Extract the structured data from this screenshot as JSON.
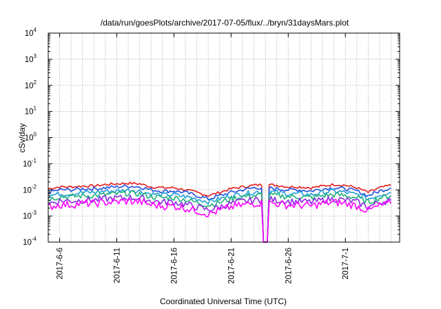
{
  "chart_data": {
    "type": "line",
    "title": "/data/run/goesPlots/archive/2017-07-05/flux/../bryn/31daysMars.plot",
    "xlabel": "Coordinated Universal Time (UTC)",
    "ylabel": "cSv/day",
    "y_scale": "log",
    "ylim": [
      0.0001,
      10000
    ],
    "xlim": [
      "2017-06-05",
      "2017-07-05T18:00"
    ],
    "y_ticks": [
      {
        "value": 0.0001,
        "base": "10",
        "exp": "-4"
      },
      {
        "value": 0.001,
        "base": "10",
        "exp": "-3"
      },
      {
        "value": 0.01,
        "base": "10",
        "exp": "-2"
      },
      {
        "value": 0.1,
        "base": "10",
        "exp": "-1"
      },
      {
        "value": 1,
        "base": "10",
        "exp": "0"
      },
      {
        "value": 10,
        "base": "10",
        "exp": "1"
      },
      {
        "value": 100,
        "base": "10",
        "exp": "2"
      },
      {
        "value": 1000,
        "base": "10",
        "exp": "3"
      },
      {
        "value": 10000,
        "base": "10",
        "exp": "4"
      }
    ],
    "x_ticks": [
      {
        "date": "2017-06-06",
        "label": "2017-6-6"
      },
      {
        "date": "2017-06-11",
        "label": "2017-6-11"
      },
      {
        "date": "2017-06-16",
        "label": "2017-6-16"
      },
      {
        "date": "2017-06-21",
        "label": "2017-6-21"
      },
      {
        "date": "2017-06-26",
        "label": "2017-6-26"
      },
      {
        "date": "2017-07-01",
        "label": "2017-7-1"
      }
    ],
    "grid": true,
    "x": [
      "2017-06-05",
      "2017-06-06",
      "2017-06-07",
      "2017-06-08",
      "2017-06-09",
      "2017-06-10",
      "2017-06-11",
      "2017-06-12",
      "2017-06-13",
      "2017-06-14",
      "2017-06-15",
      "2017-06-16",
      "2017-06-17",
      "2017-06-18",
      "2017-06-19",
      "2017-06-20",
      "2017-06-21",
      "2017-06-22",
      "2017-06-23",
      "2017-06-24",
      "2017-06-25",
      "2017-06-26",
      "2017-06-27",
      "2017-06-28",
      "2017-06-29",
      "2017-06-30",
      "2017-07-01",
      "2017-07-02",
      "2017-07-03",
      "2017-07-04",
      "2017-07-05"
    ],
    "series": [
      {
        "color": "#e41a1c",
        "values": [
          0.011,
          0.013,
          0.013,
          0.014,
          0.014,
          0.016,
          0.017,
          0.018,
          0.017,
          0.013,
          0.012,
          0.012,
          0.01,
          0.008,
          0.006,
          0.008,
          0.011,
          0.013,
          0.015,
          0.016,
          0.015,
          0.013,
          0.013,
          0.012,
          0.014,
          0.016,
          0.015,
          0.012,
          0.008,
          0.012,
          0.015
        ]
      },
      {
        "color": "#1f4fe0",
        "values": [
          0.008,
          0.01,
          0.01,
          0.011,
          0.011,
          0.012,
          0.013,
          0.014,
          0.013,
          0.01,
          0.009,
          0.009,
          0.008,
          0.006,
          0.0045,
          0.006,
          0.008,
          0.01,
          0.012,
          0.012,
          0.011,
          0.01,
          0.01,
          0.009,
          0.011,
          0.012,
          0.011,
          0.009,
          0.006,
          0.009,
          0.012
        ]
      },
      {
        "color": "#1f9fd8",
        "values": [
          0.006,
          0.007,
          0.007,
          0.008,
          0.008,
          0.009,
          0.009,
          0.01,
          0.009,
          0.007,
          0.0065,
          0.0065,
          0.0055,
          0.0045,
          0.0035,
          0.0045,
          0.006,
          0.007,
          0.008,
          0.009,
          0.008,
          0.007,
          0.007,
          0.0065,
          0.008,
          0.009,
          0.008,
          0.0065,
          0.0045,
          0.0065,
          0.008
        ]
      },
      {
        "color": "#1fb07a",
        "values": [
          0.0045,
          0.0055,
          0.0055,
          0.006,
          0.006,
          0.0065,
          0.007,
          0.0075,
          0.007,
          0.0055,
          0.005,
          0.005,
          0.0042,
          0.0033,
          0.0026,
          0.0033,
          0.0045,
          0.0055,
          0.006,
          0.0065,
          0.006,
          0.0055,
          0.0055,
          0.005,
          0.006,
          0.0065,
          0.006,
          0.005,
          0.0033,
          0.005,
          0.006
        ]
      },
      {
        "color": "#8a2be2",
        "values": [
          0.003,
          0.0038,
          0.0038,
          0.004,
          0.004,
          0.0045,
          0.0048,
          0.005,
          0.0048,
          0.0038,
          0.0034,
          0.0034,
          0.0028,
          0.0022,
          0.0017,
          0.0022,
          0.003,
          0.0036,
          0.004,
          0.0045,
          0.004,
          0.0036,
          0.0036,
          0.0034,
          0.004,
          0.0045,
          0.004,
          0.0034,
          0.0022,
          0.0034,
          0.004
        ]
      },
      {
        "color": "#ff00ff",
        "values": [
          0.0022,
          0.0027,
          0.0027,
          0.003,
          0.003,
          0.0033,
          0.0035,
          0.0037,
          0.0035,
          0.0027,
          0.0024,
          0.0024,
          0.002,
          0.0016,
          0.0012,
          0.0016,
          0.0022,
          0.0026,
          0.003,
          0.0033,
          0.003,
          0.0026,
          0.0026,
          0.0024,
          0.003,
          0.0033,
          0.003,
          0.0024,
          0.0016,
          0.0024,
          0.003
        ]
      }
    ]
  }
}
